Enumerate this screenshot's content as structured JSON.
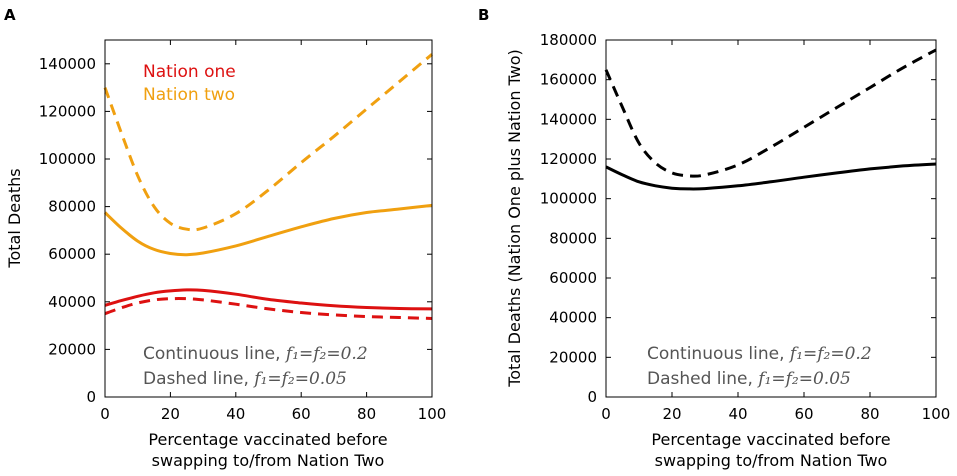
{
  "chart_data": [
    {
      "panel_label": "A",
      "type": "line",
      "xlabel_lines": [
        "Percentage vaccinated before",
        "swapping to/from Nation Two"
      ],
      "ylabel": "Total Deaths",
      "xlim": [
        0,
        100
      ],
      "ylim": [
        0,
        150000
      ],
      "xticks": [
        "0",
        "20",
        "40",
        "60",
        "80",
        "100"
      ],
      "yticks": [
        "0",
        "20000",
        "40000",
        "60000",
        "80000",
        "100000",
        "120000",
        "140000"
      ],
      "xtick_values": [
        0,
        20,
        40,
        60,
        80,
        100
      ],
      "ytick_values": [
        0,
        20000,
        40000,
        60000,
        80000,
        100000,
        120000,
        140000
      ],
      "legend": [
        {
          "name": "Nation one",
          "color": "#dd1111"
        },
        {
          "name": "Nation two",
          "color": "#f0a010"
        }
      ],
      "series": [
        {
          "name": "Nation two, f1=f2=0.2",
          "color": "#f0a010",
          "style": "solid",
          "x": [
            0,
            5,
            10,
            15,
            20,
            25,
            30,
            40,
            50,
            60,
            70,
            80,
            90,
            100
          ],
          "y": [
            77500,
            71000,
            65500,
            62000,
            60300,
            59800,
            60500,
            63500,
            67500,
            71500,
            75000,
            77500,
            79000,
            80500
          ]
        },
        {
          "name": "Nation two, f1=f2=0.05",
          "color": "#f0a010",
          "style": "dashed",
          "x": [
            0,
            5,
            10,
            15,
            20,
            25,
            30,
            40,
            50,
            60,
            70,
            80,
            90,
            100
          ],
          "y": [
            130000,
            111000,
            93000,
            80000,
            73000,
            70500,
            71000,
            77000,
            87000,
            98500,
            109500,
            121000,
            132500,
            144000
          ]
        },
        {
          "name": "Nation one, f1=f2=0.2",
          "color": "#dd1111",
          "style": "solid",
          "x": [
            0,
            5,
            10,
            15,
            20,
            25,
            30,
            40,
            50,
            60,
            70,
            80,
            90,
            100
          ],
          "y": [
            38500,
            40500,
            42300,
            43800,
            44600,
            45000,
            44800,
            43200,
            41000,
            39500,
            38300,
            37600,
            37200,
            37000
          ]
        },
        {
          "name": "Nation one, f1=f2=0.05",
          "color": "#dd1111",
          "style": "dashed",
          "x": [
            0,
            5,
            10,
            15,
            20,
            25,
            30,
            40,
            50,
            60,
            70,
            80,
            90,
            100
          ],
          "y": [
            35000,
            37500,
            39500,
            40800,
            41300,
            41300,
            40800,
            39000,
            37000,
            35500,
            34500,
            33800,
            33400,
            33000
          ]
        }
      ],
      "notes": [
        {
          "text": "Continuous line, ",
          "math": "f₁=f₂=0.2"
        },
        {
          "text": "Dashed line, ",
          "math": "f₁=f₂=0.05"
        }
      ]
    },
    {
      "panel_label": "B",
      "type": "line",
      "xlabel_lines": [
        "Percentage vaccinated before",
        "swapping to/from Nation Two"
      ],
      "ylabel": "Total Deaths (Nation One plus Nation Two)",
      "xlim": [
        0,
        100
      ],
      "ylim": [
        0,
        180000
      ],
      "xticks": [
        "0",
        "20",
        "40",
        "60",
        "80",
        "100"
      ],
      "yticks": [
        "0",
        "20000",
        "40000",
        "60000",
        "80000",
        "100000",
        "120000",
        "140000",
        "160000",
        "180000"
      ],
      "xtick_values": [
        0,
        20,
        40,
        60,
        80,
        100
      ],
      "ytick_values": [
        0,
        20000,
        40000,
        60000,
        80000,
        100000,
        120000,
        140000,
        160000,
        180000
      ],
      "series": [
        {
          "name": "Total, f1=f2=0.2",
          "color": "#000000",
          "style": "solid",
          "x": [
            0,
            5,
            10,
            15,
            20,
            25,
            30,
            40,
            50,
            60,
            70,
            80,
            90,
            100
          ],
          "y": [
            116000,
            112000,
            108500,
            106500,
            105300,
            104900,
            105100,
            106500,
            108500,
            110800,
            113000,
            115000,
            116500,
            117500
          ]
        },
        {
          "name": "Total, f1=f2=0.05",
          "color": "#000000",
          "style": "dashed",
          "x": [
            0,
            5,
            10,
            15,
            20,
            25,
            30,
            40,
            50,
            60,
            70,
            80,
            90,
            100
          ],
          "y": [
            165000,
            146000,
            128000,
            118000,
            113000,
            111500,
            112000,
            117000,
            126000,
            136000,
            146000,
            156000,
            166000,
            175000
          ]
        }
      ],
      "notes": [
        {
          "text": "Continuous line, ",
          "math": "f₁=f₂=0.2"
        },
        {
          "text": "Dashed line, ",
          "math": "f₁=f₂=0.05"
        }
      ]
    }
  ]
}
